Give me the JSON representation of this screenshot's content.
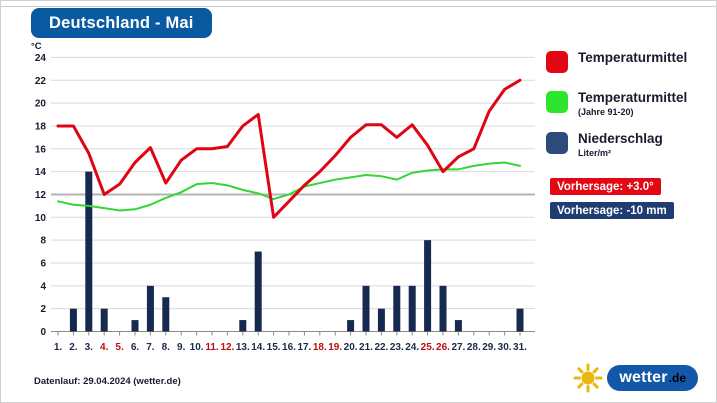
{
  "title": "Deutschland - Mai",
  "footer": "Datenlauf: 29.04.2024 (wetter.de)",
  "colors": {
    "badge_blue": "#0a5aa2",
    "temp_red": "#df0613",
    "temp_green": "#33d633",
    "precip_navy": "#16294e",
    "legend_navy": "#2c4a7c",
    "weekday_label": "#1b2a4a",
    "weekend_label": "#c00d0d",
    "grid": "#d9d9d9",
    "grid_emphasis": "#b3b3b3",
    "axis": "#8a8a8a",
    "forecast_red_bg": "#e30613",
    "forecast_navy_bg": "#1f3d70",
    "logo_blue": "#1257a8",
    "logo_yellow": "#eab70f"
  },
  "legend": {
    "items": [
      {
        "label": "Temperaturmittel",
        "sublabel": "",
        "color": "#e30613"
      },
      {
        "label": "Temperaturmittel",
        "sublabel": "(Jahre 91-20)",
        "color": "#2ee52e"
      },
      {
        "label": "Niederschlag",
        "sublabel": "Liter/m²",
        "color": "#2c4a7c"
      }
    ]
  },
  "forecast": {
    "temp": "Vorhersage: +3.0°",
    "precip": "Vorhersage: -10 mm"
  },
  "logo": {
    "name": "wetter",
    "tld": ".de"
  },
  "chart_data": {
    "type": "line+bar",
    "title": "Deutschland - Mai",
    "y_axis": {
      "unit": "°C",
      "min": 0,
      "max": 24,
      "step": 2,
      "emphasized_gridline": 12
    },
    "x_labels": [
      "1.",
      "2.",
      "3.",
      "4.",
      "5.",
      "6.",
      "7.",
      "8.",
      "9.",
      "10.",
      "11.",
      "12.",
      "13.",
      "14.",
      "15.",
      "16.",
      "17.",
      "18.",
      "19.",
      "20.",
      "21.",
      "22.",
      "23.",
      "24.",
      "25.",
      "26.",
      "27.",
      "28.",
      "29.",
      "30.",
      "31."
    ],
    "weekend_days": [
      4,
      5,
      11,
      12,
      18,
      19,
      25,
      26
    ],
    "grid": true,
    "legend_position": "right",
    "series": [
      {
        "name": "Temperaturmittel",
        "type": "line",
        "values": [
          18.0,
          18.0,
          15.6,
          12.0,
          12.9,
          14.8,
          16.1,
          13.0,
          15.0,
          16.0,
          16.0,
          16.2,
          18.0,
          19.0,
          10.0,
          11.4,
          12.8,
          14.0,
          15.4,
          17.0,
          18.1,
          18.1,
          17.0,
          18.1,
          16.3,
          14.0,
          15.3,
          16.0,
          19.3,
          21.2,
          22.0
        ]
      },
      {
        "name": "Temperaturmittel (Jahre 91-20)",
        "type": "line",
        "values": [
          11.4,
          11.1,
          11.0,
          10.8,
          10.6,
          10.7,
          11.1,
          11.7,
          12.2,
          12.9,
          13.0,
          12.8,
          12.4,
          12.1,
          11.6,
          12.0,
          12.7,
          13.0,
          13.3,
          13.5,
          13.7,
          13.6,
          13.3,
          13.9,
          14.1,
          14.2,
          14.2,
          14.5,
          14.7,
          14.8,
          14.5
        ]
      },
      {
        "name": "Niederschlag (Liter/m²)",
        "type": "bar",
        "values": [
          0,
          2,
          14,
          2,
          0,
          1,
          4,
          3,
          0,
          0,
          0,
          0,
          1,
          7,
          0,
          0,
          0,
          0,
          0,
          1,
          4,
          2,
          4,
          4,
          8,
          4,
          1,
          0,
          0,
          0,
          2
        ]
      }
    ]
  }
}
